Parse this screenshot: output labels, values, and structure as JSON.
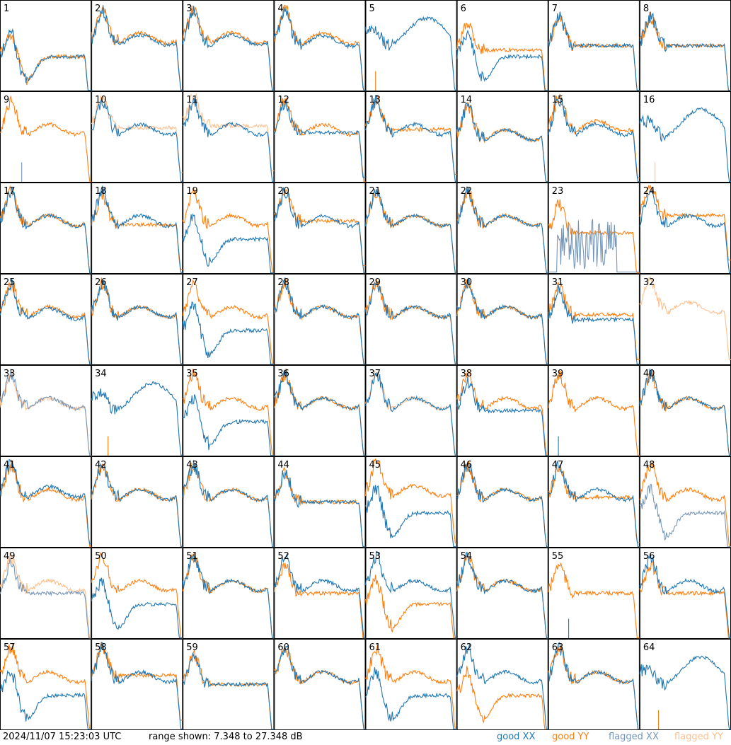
{
  "colors": {
    "good_xx": "#1f77b4",
    "good_yy": "#ff7f0e",
    "flagged_xx": "#7596b8",
    "flagged_yy": "#ffbf8c"
  },
  "footer": {
    "timestamp": "2024/11/07 15:23:03 UTC",
    "range_text": "range shown: 7.348 to 27.348 dB"
  },
  "legend": {
    "good_xx": "good XX",
    "good_yy": "good YY",
    "flagged_xx": "flagged XX",
    "flagged_yy": "flagged YY"
  },
  "chart_data": {
    "type": "line",
    "layout": "8x8 small multiples",
    "ylim": [
      7.348,
      27.348
    ],
    "y_unit": "dB",
    "series_styles": [
      "good XX",
      "good YY",
      "flagged XX",
      "flagged YY"
    ],
    "panels": [
      {
        "label": "1",
        "xx": "good",
        "yy": "good",
        "x_shape": "dip",
        "y_shape": "dip",
        "x_off": 0,
        "y_off": 0
      },
      {
        "label": "2",
        "xx": "good",
        "yy": "good",
        "x_shape": "normal",
        "y_shape": "normal",
        "x_off": 0.02,
        "y_off": 0
      },
      {
        "label": "3",
        "xx": "good",
        "yy": "good",
        "x_shape": "normal",
        "y_shape": "normal",
        "x_off": 0.02,
        "y_off": 0
      },
      {
        "label": "4",
        "xx": "good",
        "yy": "good",
        "x_shape": "normal",
        "y_shape": "normal",
        "x_off": 0.03,
        "y_off": 0
      },
      {
        "label": "5",
        "xx": "good",
        "yy": "good",
        "x_shape": "high",
        "y_shape": "spike",
        "x_off": 0,
        "y_off": 0
      },
      {
        "label": "6",
        "xx": "good",
        "yy": "good",
        "x_shape": "dip",
        "y_shape": "flat",
        "x_off": 0,
        "y_off": 0.05
      },
      {
        "label": "7",
        "xx": "good",
        "yy": "good",
        "x_shape": "flat",
        "y_shape": "flat",
        "x_off": 0,
        "y_off": 0
      },
      {
        "label": "8",
        "xx": "good",
        "yy": "good",
        "x_shape": "flat",
        "y_shape": "flat",
        "x_off": 0,
        "y_off": 0
      },
      {
        "label": "9",
        "xx": "flagged",
        "yy": "good",
        "x_shape": "spike",
        "y_shape": "normal",
        "x_off": 0,
        "y_off": 0
      },
      {
        "label": "10",
        "xx": "good",
        "yy": "flagged",
        "x_shape": "normal",
        "y_shape": "flat",
        "x_off": 0,
        "y_off": -0.1
      },
      {
        "label": "11",
        "xx": "good",
        "yy": "flagged",
        "x_shape": "normal",
        "y_shape": "flat",
        "x_off": 0,
        "y_off": -0.12
      },
      {
        "label": "12",
        "xx": "good",
        "yy": "good",
        "x_shape": "flat",
        "y_shape": "normal",
        "x_off": -0.05,
        "y_off": 0
      },
      {
        "label": "13",
        "xx": "good",
        "yy": "good",
        "x_shape": "normal",
        "y_shape": "flat",
        "x_off": 0,
        "y_off": -0.08
      },
      {
        "label": "14",
        "xx": "good",
        "yy": "good",
        "x_shape": "normal",
        "y_shape": "normal",
        "x_off": 0.06,
        "y_off": 0.06
      },
      {
        "label": "15",
        "xx": "good",
        "yy": "good",
        "x_shape": "normal",
        "y_shape": "normal",
        "x_off": 0,
        "y_off": -0.04
      },
      {
        "label": "16",
        "xx": "good",
        "yy": "flagged",
        "x_shape": "high",
        "y_shape": "spike",
        "x_off": 0,
        "y_off": 0
      },
      {
        "label": "17",
        "xx": "good",
        "yy": "good",
        "x_shape": "normal",
        "y_shape": "normal",
        "x_off": 0,
        "y_off": 0
      },
      {
        "label": "18",
        "xx": "good",
        "yy": "good",
        "x_shape": "normal",
        "y_shape": "flat",
        "x_off": 0,
        "y_off": -0.04
      },
      {
        "label": "19",
        "xx": "good",
        "yy": "good",
        "x_shape": "dip",
        "y_shape": "normal",
        "x_off": 0,
        "y_off": 0
      },
      {
        "label": "20",
        "xx": "good",
        "yy": "good",
        "x_shape": "normal",
        "y_shape": "flat",
        "x_off": 0,
        "y_off": -0.08
      },
      {
        "label": "21",
        "xx": "good",
        "yy": "good",
        "x_shape": "normal",
        "y_shape": "normal",
        "x_off": 0,
        "y_off": 0
      },
      {
        "label": "22",
        "xx": "good",
        "yy": "good",
        "x_shape": "normal",
        "y_shape": "normal",
        "x_off": 0,
        "y_off": 0
      },
      {
        "label": "23",
        "xx": "flagged",
        "yy": "good",
        "x_shape": "noise",
        "y_shape": "flat",
        "x_off": 0,
        "y_off": 0.05
      },
      {
        "label": "24",
        "xx": "good",
        "yy": "good",
        "x_shape": "normal",
        "y_shape": "flat",
        "x_off": 0,
        "y_off": -0.14
      },
      {
        "label": "25",
        "xx": "good",
        "yy": "good",
        "x_shape": "normal",
        "y_shape": "normal",
        "x_off": 0.02,
        "y_off": 0
      },
      {
        "label": "26",
        "xx": "good",
        "yy": "good",
        "x_shape": "normal",
        "y_shape": "normal",
        "x_off": 0,
        "y_off": 0
      },
      {
        "label": "27",
        "xx": "good",
        "yy": "good",
        "x_shape": "dip",
        "y_shape": "normal",
        "x_off": 0,
        "y_off": 0
      },
      {
        "label": "28",
        "xx": "good",
        "yy": "good",
        "x_shape": "normal",
        "y_shape": "normal",
        "x_off": 0,
        "y_off": 0
      },
      {
        "label": "29",
        "xx": "good",
        "yy": "good",
        "x_shape": "normal",
        "y_shape": "normal",
        "x_off": 0,
        "y_off": 0
      },
      {
        "label": "30",
        "xx": "good",
        "yy": "good",
        "x_shape": "normal",
        "y_shape": "normal",
        "x_off": 0,
        "y_off": 0
      },
      {
        "label": "31",
        "xx": "good",
        "yy": "good",
        "x_shape": "flat",
        "y_shape": "flat",
        "x_off": 0,
        "y_off": -0.05
      },
      {
        "label": "32",
        "xx": "flagged",
        "yy": "flagged",
        "x_shape": "none",
        "y_shape": "normal",
        "x_off": 0,
        "y_off": -0.05
      },
      {
        "label": "33",
        "xx": "flagged",
        "yy": "flagged",
        "x_shape": "normal",
        "y_shape": "normal",
        "x_off": 0,
        "y_off": 0
      },
      {
        "label": "34",
        "xx": "good",
        "yy": "good",
        "x_shape": "high",
        "y_shape": "spike",
        "x_off": 0,
        "y_off": 0
      },
      {
        "label": "35",
        "xx": "good",
        "yy": "good",
        "x_shape": "dip",
        "y_shape": "normal",
        "x_off": 0,
        "y_off": 0
      },
      {
        "label": "36",
        "xx": "good",
        "yy": "good",
        "x_shape": "normal",
        "y_shape": "normal",
        "x_off": 0,
        "y_off": 0
      },
      {
        "label": "37",
        "xx": "good",
        "yy": "flagged",
        "x_shape": "normal",
        "y_shape": "normal",
        "x_off": 0,
        "y_off": 0
      },
      {
        "label": "38",
        "xx": "good",
        "yy": "good",
        "x_shape": "flat",
        "y_shape": "normal",
        "x_off": 0,
        "y_off": 0
      },
      {
        "label": "39",
        "xx": "good",
        "yy": "good",
        "x_shape": "spike",
        "y_shape": "normal",
        "x_off": 0,
        "y_off": 0
      },
      {
        "label": "40",
        "xx": "good",
        "yy": "good",
        "x_shape": "normal",
        "y_shape": "normal",
        "x_off": 0,
        "y_off": 0
      },
      {
        "label": "41",
        "xx": "good",
        "yy": "good",
        "x_shape": "normal",
        "y_shape": "normal",
        "x_off": -0.03,
        "y_off": 0
      },
      {
        "label": "42",
        "xx": "good",
        "yy": "good",
        "x_shape": "normal",
        "y_shape": "normal",
        "x_off": 0,
        "y_off": 0
      },
      {
        "label": "43",
        "xx": "good",
        "yy": "good",
        "x_shape": "normal",
        "y_shape": "normal",
        "x_off": 0,
        "y_off": 0
      },
      {
        "label": "44",
        "xx": "good",
        "yy": "good",
        "x_shape": "flat",
        "y_shape": "flat",
        "x_off": 0,
        "y_off": 0
      },
      {
        "label": "45",
        "xx": "good",
        "yy": "good",
        "x_shape": "dip",
        "y_shape": "normal",
        "x_off": 0,
        "y_off": -0.04
      },
      {
        "label": "46",
        "xx": "good",
        "yy": "good",
        "x_shape": "normal",
        "y_shape": "normal",
        "x_off": 0,
        "y_off": 0
      },
      {
        "label": "47",
        "xx": "good",
        "yy": "good",
        "x_shape": "normal",
        "y_shape": "flat",
        "x_off": 0,
        "y_off": -0.05
      },
      {
        "label": "48",
        "xx": "flagged",
        "yy": "good",
        "x_shape": "dip",
        "y_shape": "normal",
        "x_off": 0,
        "y_off": 0
      },
      {
        "label": "49",
        "xx": "flagged",
        "yy": "flagged",
        "x_shape": "flat",
        "y_shape": "normal",
        "x_off": 0,
        "y_off": 0
      },
      {
        "label": "50",
        "xx": "good",
        "yy": "good",
        "x_shape": "dip",
        "y_shape": "normal",
        "x_off": 0,
        "y_off": 0
      },
      {
        "label": "51",
        "xx": "good",
        "yy": "good",
        "x_shape": "normal",
        "y_shape": "normal",
        "x_off": 0,
        "y_off": 0
      },
      {
        "label": "52",
        "xx": "good",
        "yy": "good",
        "x_shape": "normal",
        "y_shape": "flat",
        "x_off": 0,
        "y_off": 0
      },
      {
        "label": "53",
        "xx": "good",
        "yy": "good",
        "x_shape": "normal",
        "y_shape": "dip",
        "x_off": 0,
        "y_off": 0
      },
      {
        "label": "54",
        "xx": "good",
        "yy": "good",
        "x_shape": "normal",
        "y_shape": "normal",
        "x_off": 0,
        "y_off": 0
      },
      {
        "label": "55",
        "xx": "good",
        "yy": "good",
        "x_shape": "spike",
        "y_shape": "flat",
        "x_off": 0,
        "y_off": 0
      },
      {
        "label": "56",
        "xx": "good",
        "yy": "good",
        "x_shape": "normal",
        "y_shape": "flat",
        "x_off": 0,
        "y_off": 0
      },
      {
        "label": "57",
        "xx": "good",
        "yy": "good",
        "x_shape": "dip",
        "y_shape": "normal",
        "x_off": 0,
        "y_off": 0
      },
      {
        "label": "58",
        "xx": "good",
        "yy": "good",
        "x_shape": "normal",
        "y_shape": "flat",
        "x_off": 0,
        "y_off": -0.1
      },
      {
        "label": "59",
        "xx": "good",
        "yy": "good",
        "x_shape": "flat",
        "y_shape": "flat",
        "x_off": 0,
        "y_off": 0
      },
      {
        "label": "60",
        "xx": "good",
        "yy": "good",
        "x_shape": "normal",
        "y_shape": "normal",
        "x_off": 0,
        "y_off": 0
      },
      {
        "label": "61",
        "xx": "good",
        "yy": "good",
        "x_shape": "dip",
        "y_shape": "normal",
        "x_off": 0,
        "y_off": 0
      },
      {
        "label": "62",
        "xx": "good",
        "yy": "good",
        "x_shape": "normal",
        "y_shape": "dip",
        "x_off": 0,
        "y_off": 0
      },
      {
        "label": "63",
        "xx": "good",
        "yy": "good",
        "x_shape": "normal",
        "y_shape": "normal",
        "x_off": 0,
        "y_off": 0
      },
      {
        "label": "64",
        "xx": "good",
        "yy": "good",
        "x_shape": "high",
        "y_shape": "spike",
        "x_off": 0,
        "y_off": 0
      }
    ]
  }
}
